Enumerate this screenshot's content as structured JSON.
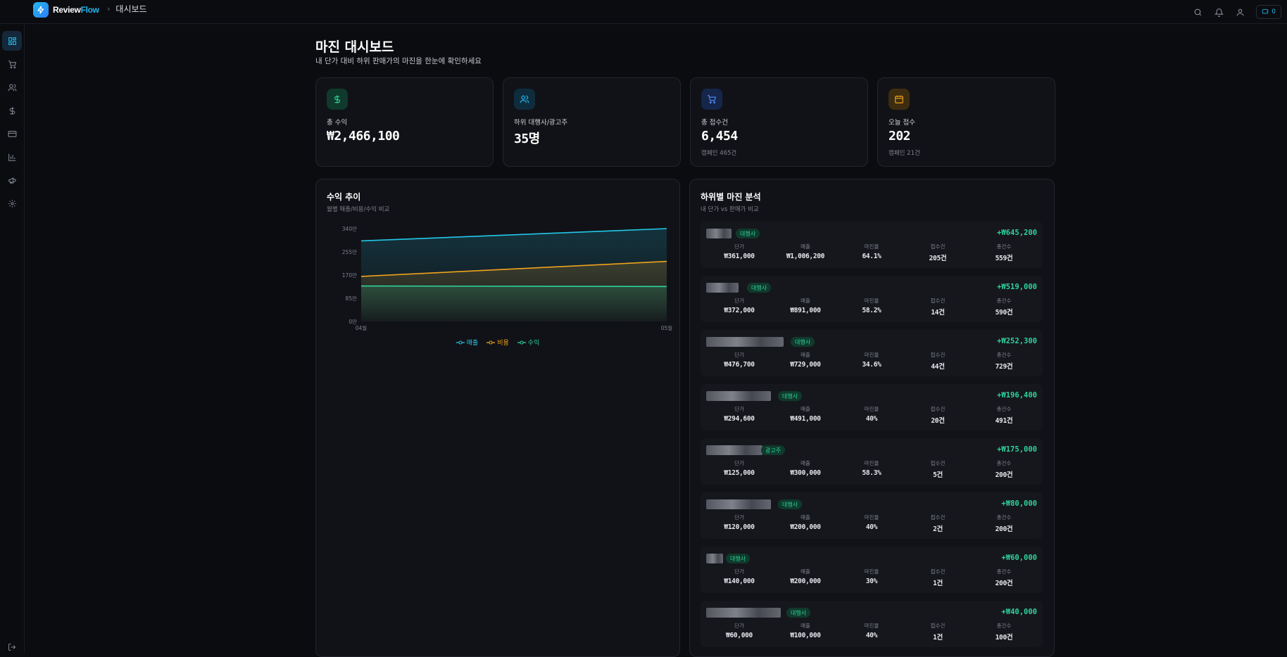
{
  "app": {
    "name_main": "Review",
    "name_accent": "Flow",
    "breadcrumb": "대시보드",
    "credit": "0"
  },
  "page": {
    "title": "마진 대시보드",
    "subtitle": "내 단가 대비 하위 판매가의 마진을 한눈에 확인하세요"
  },
  "sidebar": {
    "items": [
      "dashboard-icon",
      "cart-icon",
      "users-icon",
      "dollar-icon",
      "card-icon",
      "chart-icon",
      "megaphone-icon",
      "gear-icon"
    ]
  },
  "stats": [
    {
      "label": "총 수익",
      "value": "₩2,466,100",
      "sub": "",
      "icon": "dollar-icon",
      "color": "#2ed39a",
      "bg": "#0f3a2c"
    },
    {
      "label": "하위 대행사/광고주",
      "value": "35명",
      "sub": "",
      "icon": "users-icon",
      "color": "#22b8f0",
      "bg": "#0f2c3d"
    },
    {
      "label": "총 접수건",
      "value": "6,454",
      "sub": "캠페인 465건",
      "icon": "cart-icon",
      "color": "#4f8cf7",
      "bg": "#15264a"
    },
    {
      "label": "오늘 접수",
      "value": "202",
      "sub": "캠페인 21건",
      "icon": "calendar-icon",
      "color": "#f0a21e",
      "bg": "#3d2c0f"
    }
  ],
  "revenue_chart": {
    "title": "수익 추이",
    "subtitle": "월별 매출/비용/수익 비교"
  },
  "chart_data": {
    "type": "area",
    "categories": [
      "04월",
      "05월"
    ],
    "y_ticks": [
      "0만",
      "85만",
      "170만",
      "255만",
      "340만"
    ],
    "ylim": [
      0,
      3400000
    ],
    "series": [
      {
        "name": "매출",
        "values": [
          2950000,
          3400000
        ],
        "color": "#22c8e8"
      },
      {
        "name": "비용",
        "values": [
          1650000,
          2200000
        ],
        "color": "#f0a21e"
      },
      {
        "name": "수익",
        "values": [
          1300000,
          1280000
        ],
        "color": "#2ed39a"
      }
    ],
    "grid": false,
    "legend": "bottom"
  },
  "margin_analysis": {
    "title": "하위별 마진 분석",
    "subtitle": "내 단가 vs 판매가 비교",
    "columns": [
      "단가",
      "매출",
      "마진율",
      "접수건",
      "총건수"
    ],
    "rows": [
      {
        "badge": "대행사",
        "profit": "+₩645,200",
        "unit": "₩361,000",
        "sales": "₩1,006,200",
        "rate": "64.1%",
        "count": "205건",
        "total": "559건"
      },
      {
        "badge": "대행사",
        "profit": "+₩519,000",
        "unit": "₩372,000",
        "sales": "₩891,000",
        "rate": "58.2%",
        "count": "14건",
        "total": "590건"
      },
      {
        "badge": "대행사",
        "profit": "+₩252,300",
        "unit": "₩476,700",
        "sales": "₩729,000",
        "rate": "34.6%",
        "count": "44건",
        "total": "729건"
      },
      {
        "badge": "대행사",
        "profit": "+₩196,400",
        "unit": "₩294,600",
        "sales": "₩491,000",
        "rate": "40%",
        "count": "20건",
        "total": "491건"
      },
      {
        "badge": "광고주",
        "profit": "+₩175,000",
        "unit": "₩125,000",
        "sales": "₩300,000",
        "rate": "58.3%",
        "count": "5건",
        "total": "200건"
      },
      {
        "badge": "대행사",
        "profit": "+₩80,000",
        "unit": "₩120,000",
        "sales": "₩200,000",
        "rate": "40%",
        "count": "2건",
        "total": "200건"
      },
      {
        "badge": "대행사",
        "profit": "+₩60,000",
        "unit": "₩140,000",
        "sales": "₩200,000",
        "rate": "30%",
        "count": "1건",
        "total": "200건"
      },
      {
        "badge": "대행사",
        "profit": "+₩40,000",
        "unit": "₩60,000",
        "sales": "₩100,000",
        "rate": "40%",
        "count": "1건",
        "total": "100건"
      }
    ]
  }
}
